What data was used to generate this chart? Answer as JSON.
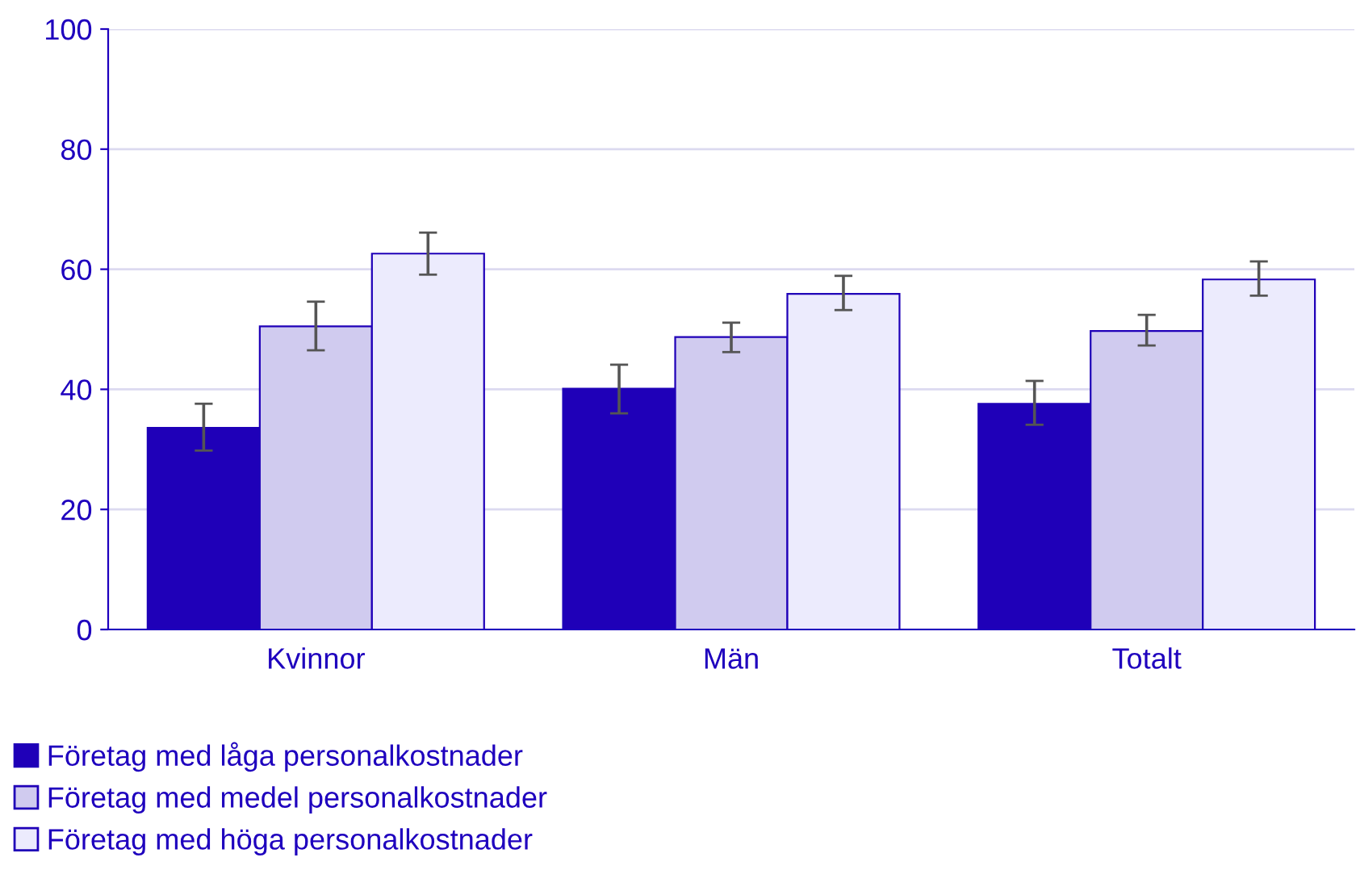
{
  "chart_data": {
    "type": "bar",
    "categories": [
      "Kvinnor",
      "Män",
      "Totalt"
    ],
    "series": [
      {
        "name": "Företag med låga personalkostnader",
        "color": "#1f00b8",
        "values": [
          33.6,
          40.1,
          37.6
        ],
        "errors": [
          [
            29.8,
            37.6
          ],
          [
            36.0,
            44.1
          ],
          [
            34.1,
            41.4
          ]
        ]
      },
      {
        "name": "Företag med medel personalkostnader",
        "color": "#d0cbef",
        "values": [
          50.5,
          48.7,
          49.7
        ],
        "errors": [
          [
            46.5,
            54.6
          ],
          [
            46.2,
            51.1
          ],
          [
            47.3,
            52.4
          ]
        ]
      },
      {
        "name": "Företag med höga personalkostnader",
        "color": "#ecebfd",
        "values": [
          62.6,
          55.9,
          58.3
        ],
        "errors": [
          [
            59.1,
            66.1
          ],
          [
            53.2,
            58.9
          ],
          [
            55.6,
            61.3
          ]
        ]
      }
    ],
    "ylim": [
      0,
      100
    ],
    "yticks": [
      0,
      20,
      40,
      60,
      80,
      100
    ],
    "grid": "y",
    "legend": "bottom"
  }
}
